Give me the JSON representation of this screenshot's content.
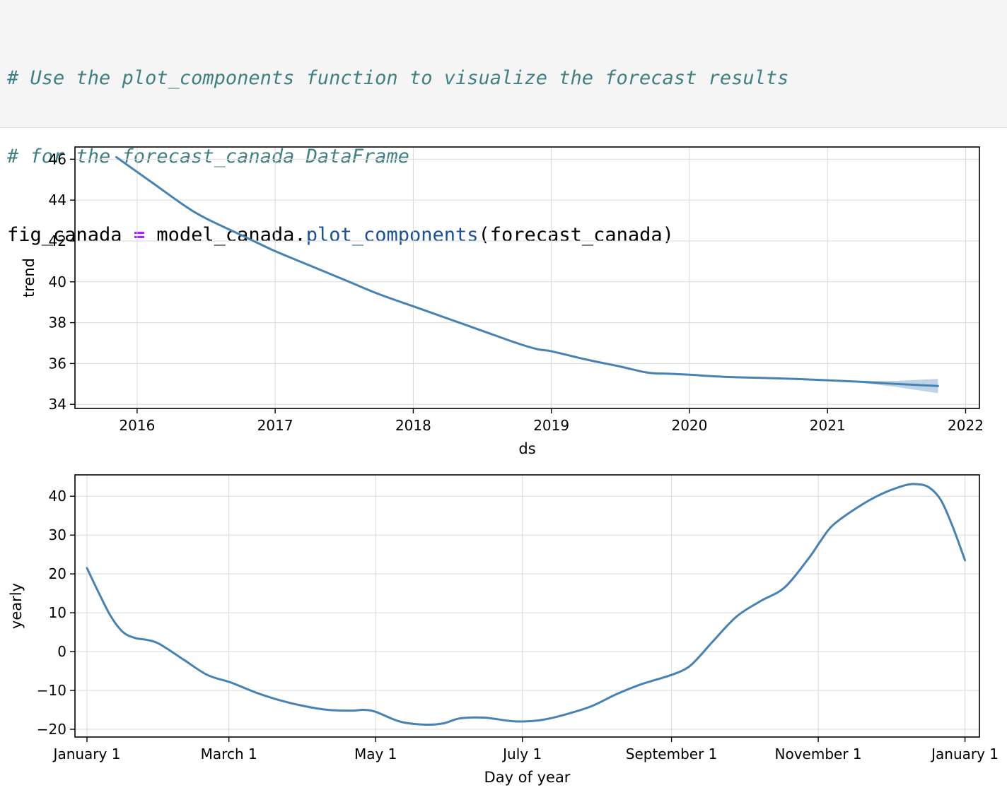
{
  "code_cell": {
    "comment_line_1": "# Use the plot_components function to visualize the forecast results",
    "comment_line_2": "# for the forecast_canada DataFrame",
    "code_var": "fig_canada",
    "code_op": "=",
    "code_obj": "model_canada.",
    "code_func": "plot_components",
    "code_args": "(forecast_canada)"
  },
  "colors": {
    "line": "#4682b4",
    "band": "#a9c4de",
    "grid": "#d9d9d9"
  },
  "chart_data": [
    {
      "type": "line",
      "title": "",
      "xlabel": "ds",
      "ylabel": "trend",
      "x_type": "year",
      "xlim": [
        2015.55,
        2022.1
      ],
      "ylim": [
        33.8,
        46.6
      ],
      "xticks": [
        2016,
        2017,
        2018,
        2019,
        2020,
        2021,
        2022
      ],
      "xtick_labels": [
        "2016",
        "2017",
        "2018",
        "2019",
        "2020",
        "2021",
        "2022"
      ],
      "yticks": [
        34,
        36,
        38,
        40,
        42,
        44,
        46
      ],
      "ytick_labels": [
        "34",
        "36",
        "38",
        "40",
        "42",
        "44",
        "46"
      ],
      "grid": true,
      "series": [
        {
          "x": [
            2015.85,
            2016.1,
            2016.35,
            2016.5,
            2016.75,
            2017.0,
            2017.25,
            2017.5,
            2017.75,
            2018.0,
            2018.25,
            2018.5,
            2018.75,
            2018.9,
            2019.0,
            2019.25,
            2019.5,
            2019.7,
            2019.85,
            2020.0,
            2020.25,
            2020.5,
            2020.75,
            2021.0,
            2021.25,
            2021.5,
            2021.8
          ],
          "y": [
            46.1,
            44.9,
            43.7,
            43.1,
            42.3,
            41.5,
            40.8,
            40.1,
            39.4,
            38.8,
            38.2,
            37.6,
            37.0,
            36.7,
            36.6,
            36.2,
            35.85,
            35.55,
            35.5,
            35.45,
            35.35,
            35.3,
            35.25,
            35.18,
            35.1,
            35.0,
            34.9
          ],
          "upper": [
            46.1,
            44.9,
            43.7,
            43.1,
            42.3,
            41.5,
            40.8,
            40.1,
            39.4,
            38.8,
            38.2,
            37.6,
            37.0,
            36.7,
            36.6,
            36.2,
            35.85,
            35.55,
            35.5,
            35.45,
            35.35,
            35.3,
            35.25,
            35.2,
            35.15,
            35.15,
            35.25
          ],
          "lower": [
            46.1,
            44.9,
            43.7,
            43.1,
            42.3,
            41.5,
            40.8,
            40.1,
            39.4,
            38.8,
            38.2,
            37.6,
            37.0,
            36.7,
            36.6,
            36.2,
            35.85,
            35.55,
            35.5,
            35.45,
            35.35,
            35.3,
            35.25,
            35.16,
            35.05,
            34.85,
            34.55
          ]
        }
      ]
    },
    {
      "type": "line",
      "title": "",
      "xlabel": "Day of year",
      "ylabel": "yearly",
      "x_type": "day_of_year",
      "xlim": [
        -5,
        371
      ],
      "ylim": [
        -22,
        45.5
      ],
      "xticks": [
        0,
        59,
        120,
        181,
        243,
        304,
        365
      ],
      "xtick_labels": [
        "January 1",
        "March 1",
        "May 1",
        "July 1",
        "September 1",
        "November 1",
        "January 1"
      ],
      "yticks": [
        -20,
        -10,
        0,
        10,
        20,
        30,
        40
      ],
      "ytick_labels": [
        "−20",
        "−10",
        "0",
        "10",
        "20",
        "30",
        "40"
      ],
      "grid": true,
      "series": [
        {
          "x": [
            0,
            5,
            10,
            15,
            20,
            25,
            30,
            40,
            50,
            60,
            70,
            80,
            90,
            100,
            110,
            115,
            120,
            130,
            140,
            148,
            155,
            165,
            175,
            181,
            190,
            200,
            210,
            220,
            230,
            243,
            250,
            255,
            260,
            270,
            280,
            290,
            300,
            305,
            310,
            320,
            330,
            340,
            345,
            350,
            355,
            360,
            365
          ],
          "y": [
            21.5,
            15,
            9,
            5,
            3.5,
            3,
            2,
            -2,
            -6,
            -8,
            -10.5,
            -12.5,
            -14,
            -15,
            -15.2,
            -15,
            -15.5,
            -18,
            -18.8,
            -18.5,
            -17.2,
            -17,
            -17.8,
            -18,
            -17.5,
            -16,
            -14,
            -11,
            -8.5,
            -6,
            -4,
            -1,
            2.5,
            9,
            13,
            16.5,
            24,
            28.5,
            32.5,
            37,
            40.5,
            42.8,
            43.1,
            42.3,
            39,
            32,
            23.5
          ]
        }
      ]
    }
  ]
}
